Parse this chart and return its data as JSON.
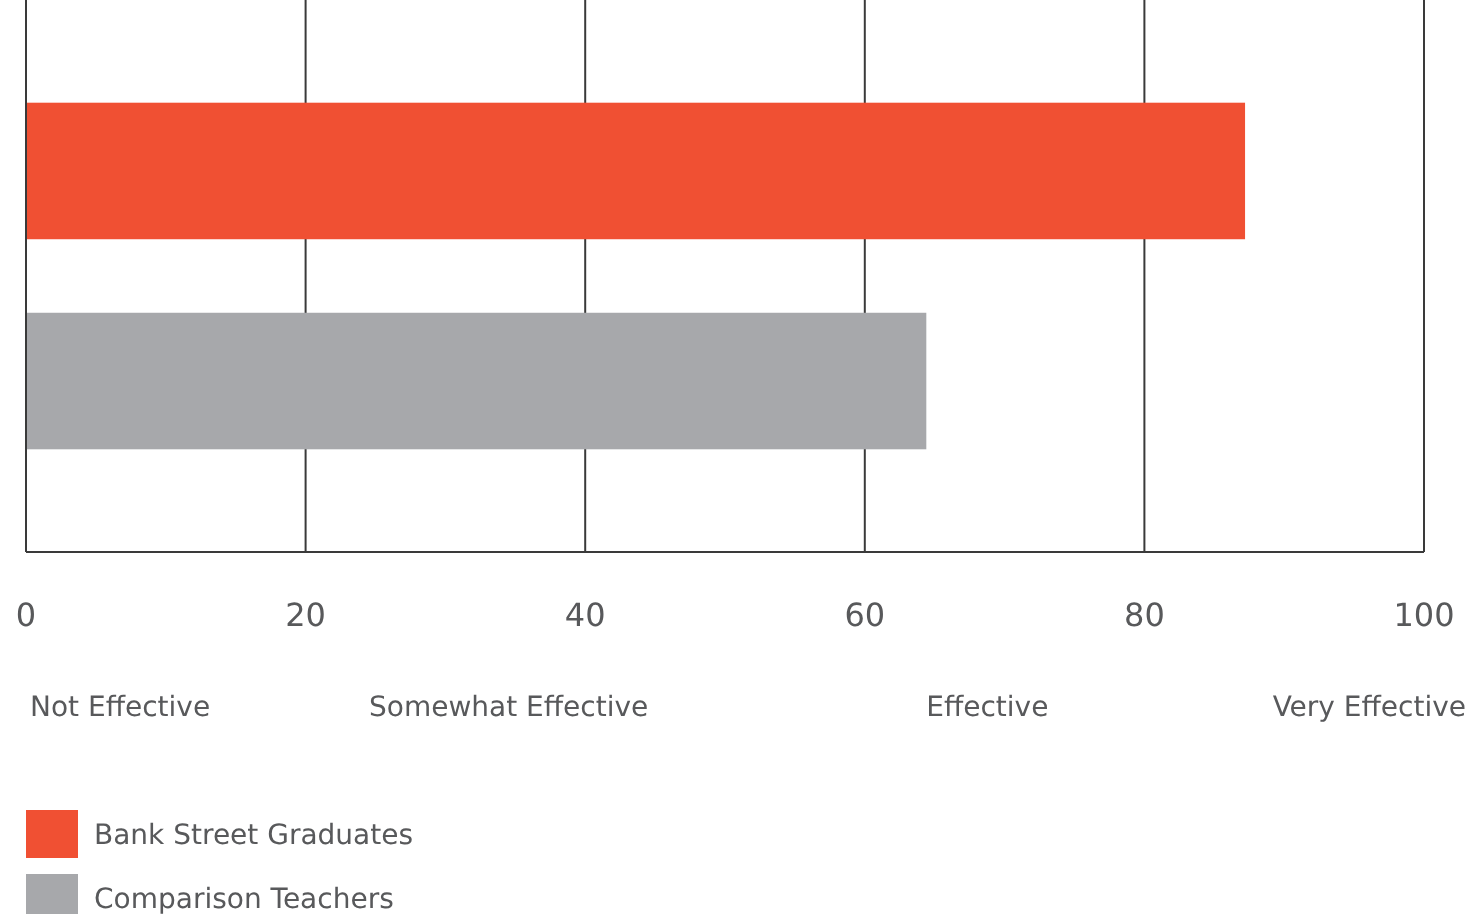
{
  "chart_data": {
    "type": "bar",
    "orientation": "horizontal",
    "categories": [
      null
    ],
    "series": [
      {
        "name": "Bank Street Graduates",
        "color": "#f05033",
        "values": [
          87.2
        ]
      },
      {
        "name": "Comparison Teachers",
        "color": "#a7a8ab",
        "values": [
          64.4
        ]
      }
    ],
    "xlim": [
      0,
      100
    ],
    "xticks": [
      0,
      20,
      40,
      60,
      80,
      100
    ],
    "grid": "x",
    "legend": "bottom left",
    "annotations": [
      "Not Effective",
      "Somewhat Effective",
      "Effective",
      "Very Effective"
    ]
  }
}
